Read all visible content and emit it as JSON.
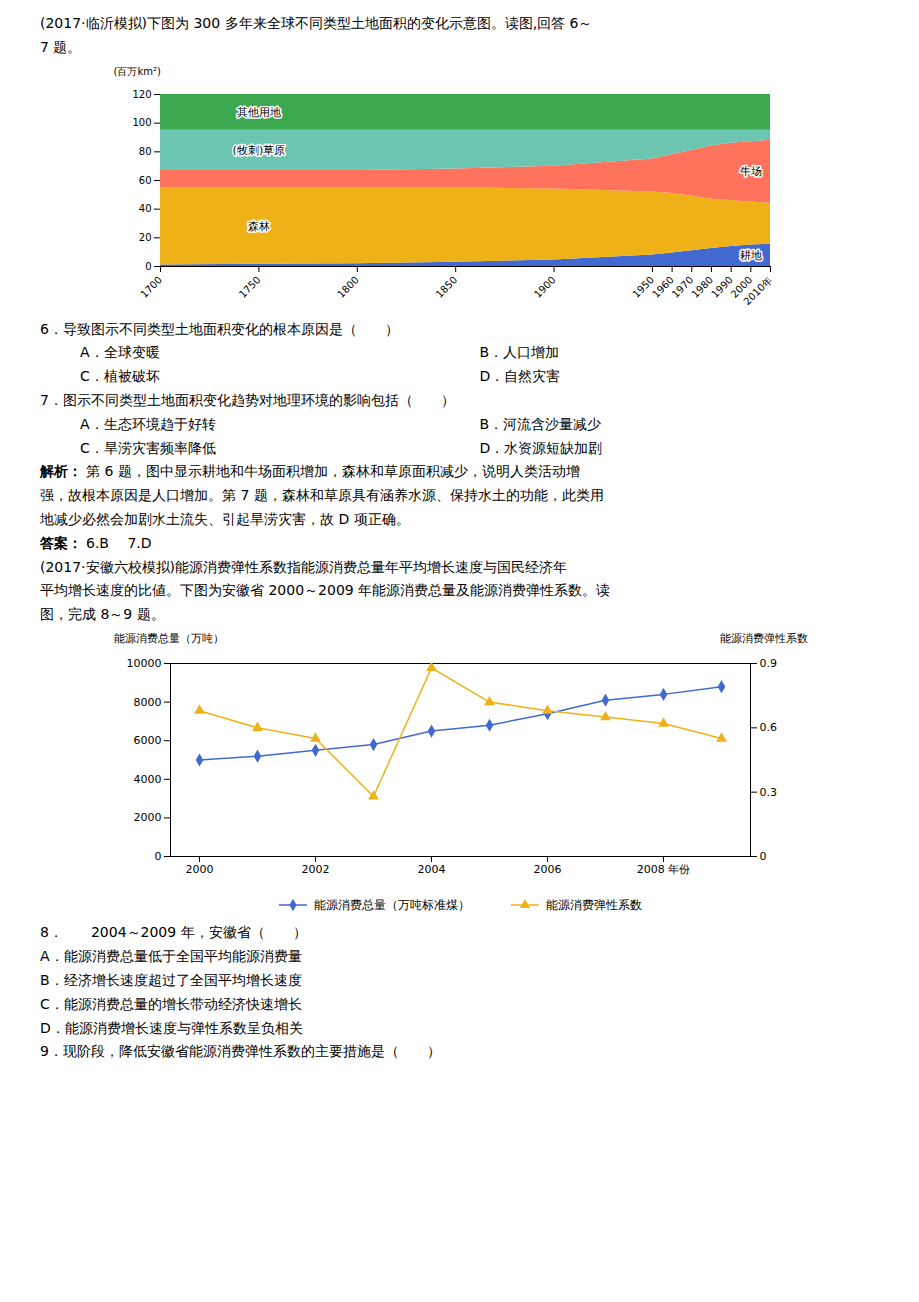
{
  "chart_data": [
    {
      "type": "area",
      "stacked": true,
      "subtitle": [
        "(2017·临沂模拟)下图为 300 多年来全球不同类型土地面积的变化示意图。读图,回答 6～",
        "7 题。"
      ],
      "ylabel": "(百万km²)",
      "x": [
        1700,
        1750,
        1800,
        1850,
        1900,
        1950,
        1960,
        1970,
        1980,
        1990,
        2000,
        2010
      ],
      "xlim": [
        1700,
        2010
      ],
      "xticks": [
        1700,
        1750,
        1800,
        1850,
        1900,
        1950,
        1960,
        1970,
        1980,
        1990,
        2000,
        {
          "value": 2010,
          "label": "2010年"
        }
      ],
      "ylim": [
        0,
        120
      ],
      "yticks": [
        0,
        20,
        40,
        60,
        80,
        100,
        120
      ],
      "series": [
        {
          "name": "耕地",
          "values": [
            1.0,
            1.5,
            2.0,
            3.0,
            4.5,
            8.0,
            9.5,
            11.0,
            12.5,
            14.0,
            15.0,
            15.5
          ]
        },
        {
          "name": "森林",
          "values": [
            54,
            53.5,
            53,
            52,
            49.5,
            44,
            41.5,
            38,
            34.5,
            32,
            30,
            28.5
          ]
        },
        {
          "name": "牛场",
          "values": [
            12,
            12,
            12,
            13,
            16,
            23,
            27,
            32,
            37,
            40,
            42,
            44
          ]
        },
        {
          "name": "(牧刺)草原",
          "values": [
            28,
            28,
            28,
            27,
            25,
            20,
            17,
            14,
            11,
            9,
            8,
            7
          ]
        },
        {
          "name": "其他用地",
          "values": [
            25,
            25,
            25,
            25,
            25,
            25,
            25,
            25,
            25,
            25,
            25,
            25
          ]
        }
      ],
      "annotations": [
        [
          "6．导致图示不同类型土地面积变化的根本原因是（　　）"
        ],
        [
          "A．全球变暖",
          "B．人口增加"
        ],
        [
          "C．植被破坏",
          "D．自然灾害"
        ],
        [
          "7．图示不同类型土地面积变化趋势对地理环境的影响包括（　　）"
        ],
        [
          "A．生态环境趋于好转",
          "B．河流含沙量减少"
        ],
        [
          "C．旱涝灾害频率降低",
          "D．水资源短缺加剧"
        ],
        [
          "解析：",
          "第 6 题，图中显示耕地和牛场面积增加，森林和草原面积减少，说明人类活动增"
        ],
        [
          "强，故根本原因是人口增加。第 7 题，森林和草原具有涵养水源、保持水土的功能，此类用"
        ],
        [
          "地减少必然会加剧水土流失、引起旱涝灾害，故 D 项正确。"
        ],
        [
          "答案：",
          "6.B　 7.D"
        ]
      ]
    },
    {
      "type": "line",
      "subtitle": [
        "(2017·安徽六校模拟)能源消费弹性系数指能源消费总量年平均增长速度与国民经济年",
        "平均增长速度的比値。下图为安徽省 2000～2009 年能源消费总量及能源消费弹性系数。读",
        "图，完成 8～9 题。"
      ],
      "ylabel": "能源消费总量（万吨）",
      "y2label": "能源消费弹性系数",
      "x": [
        2000,
        2001,
        2002,
        2003,
        2004,
        2005,
        2006,
        2007,
        2008,
        2009
      ],
      "xlim": [
        1999.5,
        2009.5
      ],
      "xticks": [
        2000,
        2002,
        2004,
        2006,
        {
          "value": 2008,
          "label": "2008 年份"
        }
      ],
      "ylim": [
        0,
        10000
      ],
      "yticks": [
        0,
        2000,
        4000,
        6000,
        8000,
        10000
      ],
      "y2lim": [
        0,
        0.9
      ],
      "y2ticks": [
        0,
        0.3,
        0.6,
        0.9
      ],
      "legend": "bottom",
      "series": [
        {
          "name": "能源消费总量（万吨标准煤）",
          "marker": "diamond",
          "values": [
            5000,
            5200,
            5500,
            5800,
            6500,
            6800,
            7400,
            8100,
            8400,
            8800
          ]
        },
        {
          "name": "能源消费弹性系数",
          "marker": "triangle",
          "axis": "y2",
          "values": [
            0.68,
            0.6,
            0.55,
            0.28,
            0.88,
            0.72,
            0.68,
            0.65,
            0.62,
            0.55
          ]
        }
      ],
      "annotations": [
        [
          "8．　　2004～2009 年，安徽省（　　）"
        ],
        [
          "A．能源消费总量低于全国平均能源消费量"
        ],
        [
          "B．经济增长速度超过了全国平均增长速度"
        ],
        [
          "C．能源消费总量的增长带动经济快速增长"
        ],
        [
          "D．能源消费增长速度与弹性系数呈负相关"
        ],
        [
          "9．现阶段，降低安徽省能源消费弹性系数的主要措施是（　　）"
        ]
      ]
    }
  ]
}
